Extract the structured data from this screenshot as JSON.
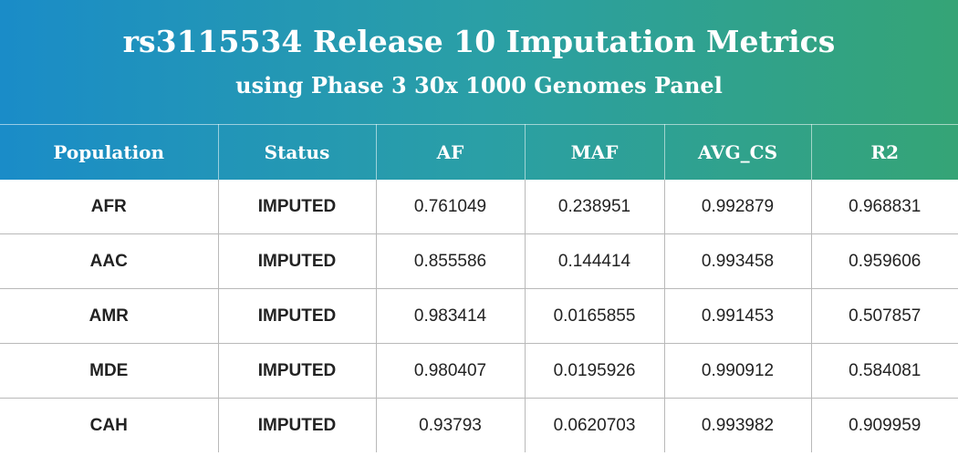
{
  "chart_data": {
    "type": "table",
    "title": "rs3115534 Release 10 Imputation Metrics",
    "subtitle": "using Phase 3 30x 1000 Genomes Panel",
    "columns": [
      "Population",
      "Status",
      "AF",
      "MAF",
      "AVG_CS",
      "R2"
    ],
    "rows": [
      {
        "population": "AFR",
        "status": "IMPUTED",
        "af": "0.761049",
        "maf": "0.238951",
        "avg_cs": "0.992879",
        "r2": "0.968831"
      },
      {
        "population": "AAC",
        "status": "IMPUTED",
        "af": "0.855586",
        "maf": "0.144414",
        "avg_cs": "0.993458",
        "r2": "0.959606"
      },
      {
        "population": "AMR",
        "status": "IMPUTED",
        "af": "0.983414",
        "maf": "0.0165855",
        "avg_cs": "0.991453",
        "r2": "0.507857"
      },
      {
        "population": "MDE",
        "status": "IMPUTED",
        "af": "0.980407",
        "maf": "0.0195926",
        "avg_cs": "0.990912",
        "r2": "0.584081"
      },
      {
        "population": "CAH",
        "status": "IMPUTED",
        "af": "0.93793",
        "maf": "0.0620703",
        "avg_cs": "0.993982",
        "r2": "0.909959"
      }
    ]
  },
  "colors": {
    "gradient_start": "#1a8cc8",
    "gradient_mid": "#2a9fa6",
    "gradient_end": "#35a476",
    "population_text": "#2a8fc4",
    "status_text": "#111111",
    "grid_line": "#b9b9b9"
  }
}
